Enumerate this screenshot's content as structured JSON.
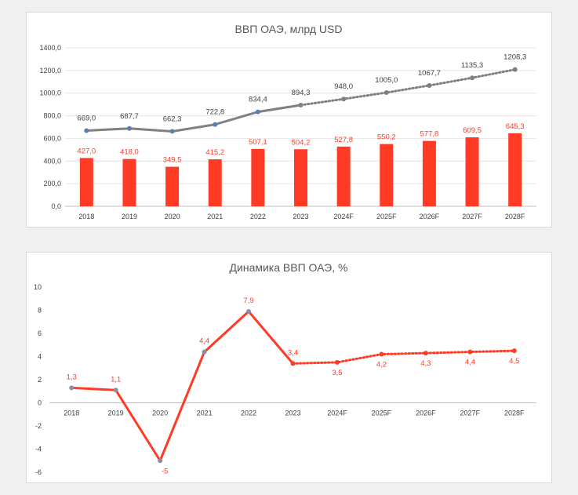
{
  "chart_data": [
    {
      "type": "bar+line",
      "title": "ВВП ОАЭ, млрд USD",
      "categories": [
        "2018",
        "2019",
        "2020",
        "2021",
        "2022",
        "2023",
        "2024F",
        "2025F",
        "2026F",
        "2027F",
        "2028F"
      ],
      "y_ticks": [
        "0,0",
        "200,0",
        "400,0",
        "600,0",
        "800,0",
        "1000,0",
        "1200,0",
        "1400,0"
      ],
      "ylim": [
        0,
        1400
      ],
      "grid": true,
      "series": [
        {
          "kind": "bar",
          "values": [
            427.0,
            418.0,
            349.5,
            415.2,
            507.1,
            504.2,
            527.8,
            550.2,
            577.8,
            609.5,
            645.3
          ],
          "labels": [
            "427,0",
            "418,0",
            "349,5",
            "415,2",
            "507,1",
            "504,2",
            "527,8",
            "550,2",
            "577,8",
            "609,5",
            "645,3"
          ],
          "color": "#ff3b25"
        },
        {
          "kind": "line",
          "values": [
            669.0,
            687.7,
            662.3,
            722.8,
            834.4,
            894.3,
            948.0,
            1005.0,
            1067.7,
            1135.3,
            1208.3
          ],
          "labels": [
            "669,0",
            "687,7",
            "662,3",
            "722,8",
            "834,4",
            "894,3",
            "948,0",
            "1005,0",
            "1067,7",
            "1135,3",
            "1208,3"
          ],
          "color": "#808080",
          "marker_color": "#5b7db1",
          "dotted_from_index": 5
        }
      ]
    },
    {
      "type": "line",
      "title": "Динамика ВВП ОАЭ, %",
      "categories": [
        "2018",
        "2019",
        "2020",
        "2021",
        "2022",
        "2023",
        "2024F",
        "2025F",
        "2026F",
        "2027F",
        "2028F"
      ],
      "y_ticks": [
        "-6",
        "-4",
        "-2",
        "0",
        "2",
        "4",
        "6",
        "8",
        "10"
      ],
      "ylim": [
        -6,
        10
      ],
      "grid": false,
      "series": [
        {
          "values": [
            1.3,
            1.1,
            -5,
            4.4,
            7.9,
            3.4,
            3.5,
            4.2,
            4.3,
            4.4,
            4.5
          ],
          "labels": [
            "1,3",
            "1,1",
            "-5",
            "4,4",
            "7,9",
            "3,4",
            "3,5",
            "4,2",
            "4,3",
            "4,4",
            "4,5"
          ],
          "color": "#ff3b25",
          "marker_color": "#8a8fa3",
          "dotted_from_index": 5
        }
      ]
    }
  ]
}
